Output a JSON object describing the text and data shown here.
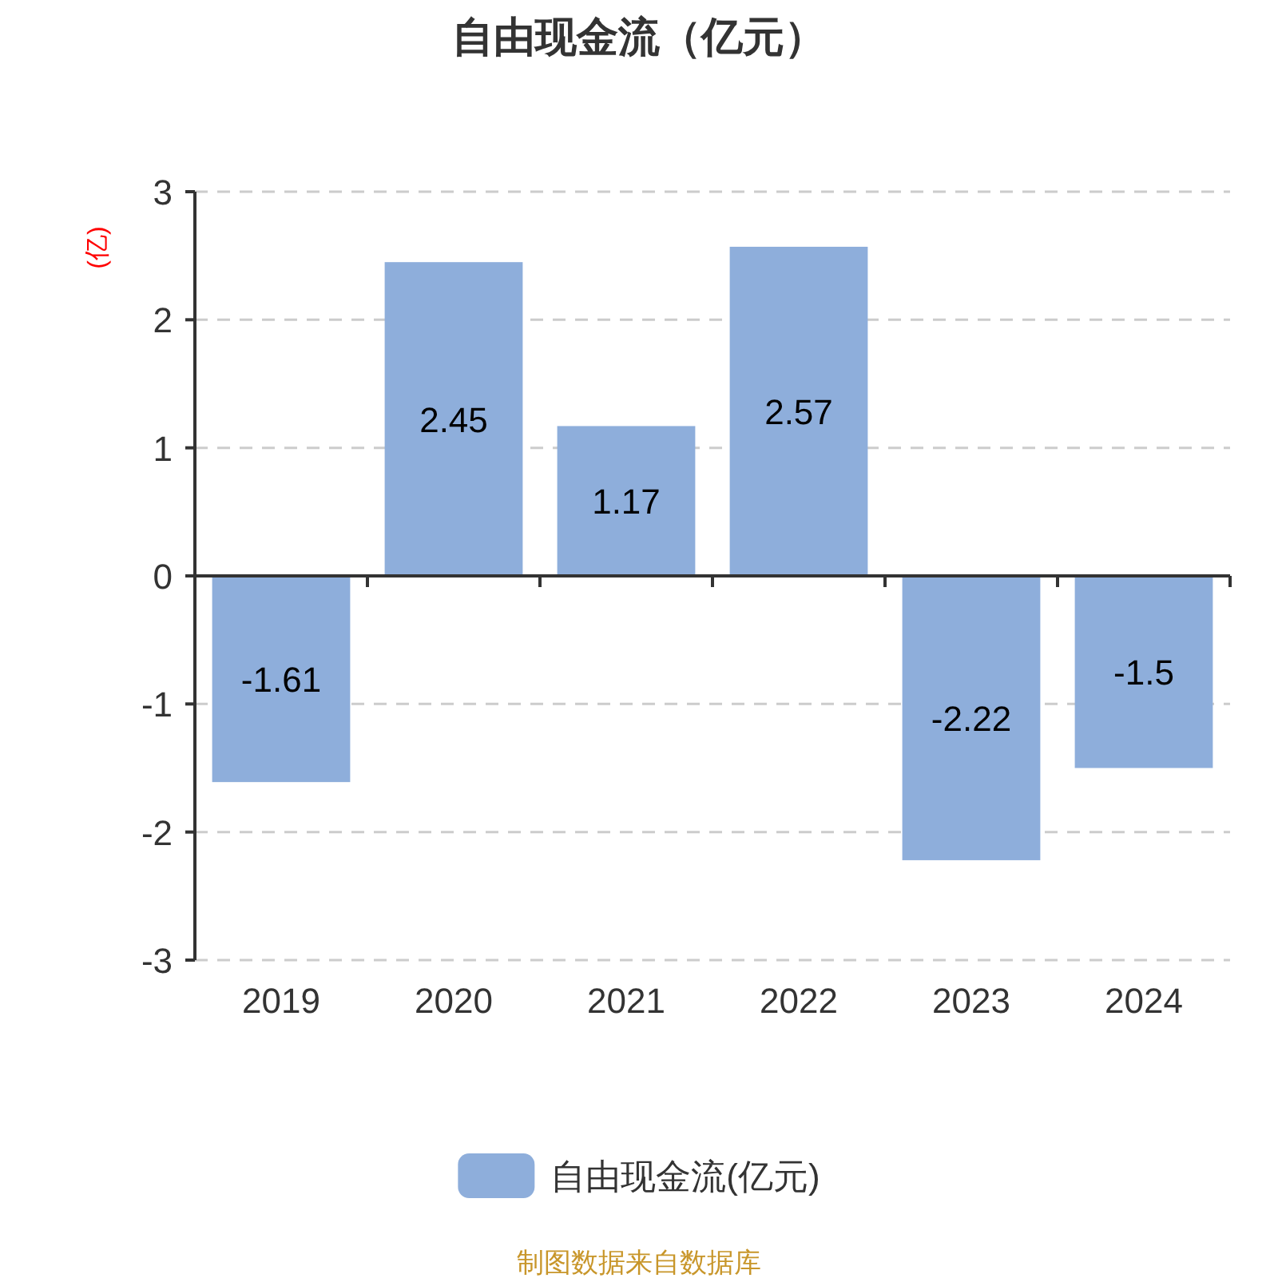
{
  "chart_data": {
    "type": "bar",
    "title": "自由现金流（亿元）",
    "ylabel": "(亿)",
    "categories": [
      "2019",
      "2020",
      "2021",
      "2022",
      "2023",
      "2024"
    ],
    "series": [
      {
        "name": "自由现金流(亿元)",
        "color": "#8eaedb",
        "values": [
          -1.61,
          2.45,
          1.17,
          2.57,
          -2.22,
          -1.5
        ]
      }
    ],
    "ylim": [
      -3,
      3
    ],
    "yticks": [
      -3,
      -2,
      -1,
      0,
      1,
      2,
      3
    ],
    "grid": "y",
    "legend": "bottom",
    "data_labels": true,
    "annotations": [
      "制图数据来自数据库"
    ]
  }
}
